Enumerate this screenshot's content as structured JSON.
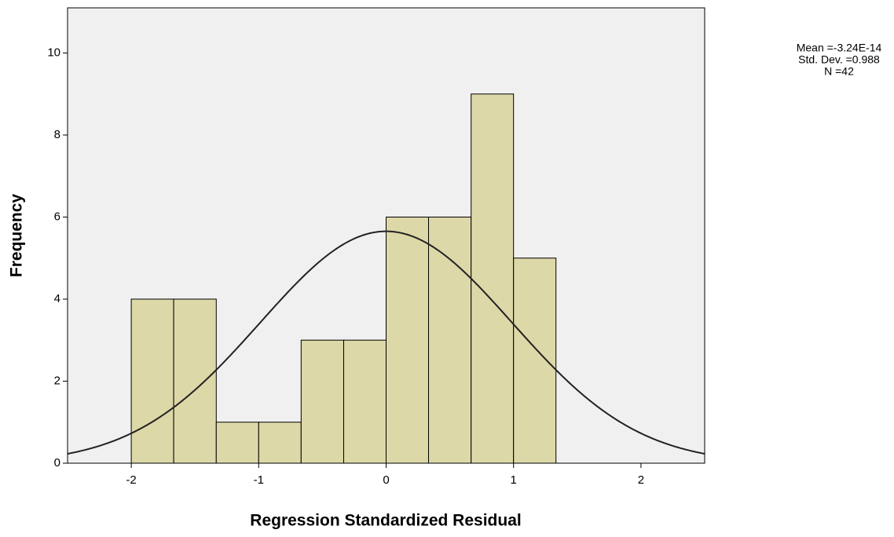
{
  "chart_data": {
    "type": "histogram",
    "xlabel": "Regression Standardized Residual",
    "ylabel": "Frequency",
    "bins": [
      -2,
      -1.667,
      -1.333,
      -1,
      -0.667,
      -0.333,
      0,
      0.333,
      0.667,
      1,
      1.333
    ],
    "values": [
      4,
      4,
      1,
      1,
      3,
      3,
      6,
      6,
      9,
      5
    ],
    "color": "#ddd8a8",
    "xlim": [
      -2.5,
      2.5
    ],
    "ylim": [
      0,
      11.1
    ],
    "xticks": [
      -2,
      -1,
      0,
      1,
      2
    ],
    "yticks": [
      0,
      2,
      4,
      6,
      8,
      10
    ],
    "curve": {
      "mean": -3.24e-14,
      "sd": 0.988,
      "n": 42
    },
    "stats": [
      "Mean =-3.24E-14",
      "Std. Dev. =0.988",
      "N =42"
    ]
  }
}
